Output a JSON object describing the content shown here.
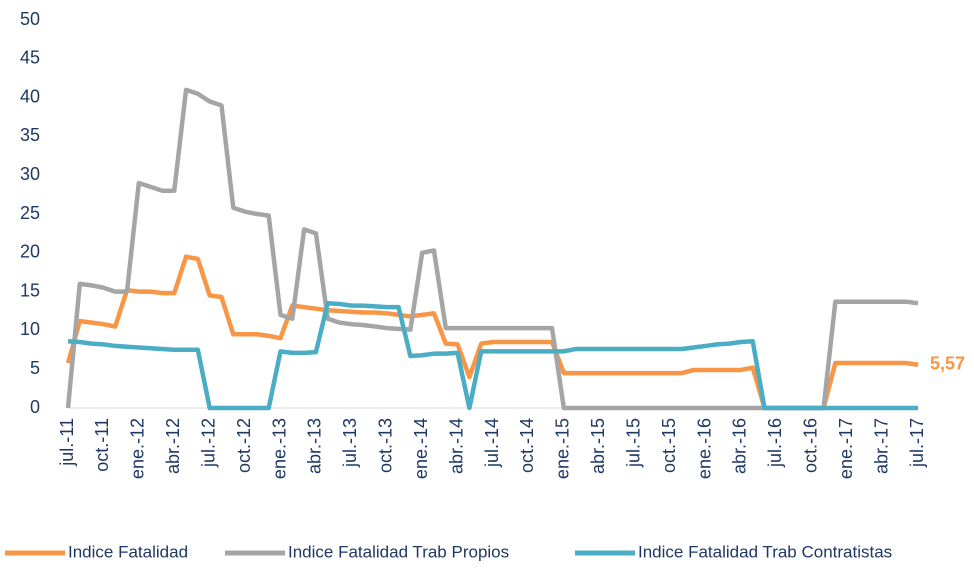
{
  "chart_data": {
    "type": "line",
    "categories": [
      "jul.-11",
      null,
      null,
      "oct.-11",
      null,
      null,
      "ene.-12",
      null,
      null,
      "abr.-12",
      null,
      null,
      "jul.-12",
      null,
      null,
      "oct.-12",
      null,
      null,
      "ene.-13",
      null,
      null,
      "abr.-13",
      null,
      null,
      "jul.-13",
      null,
      null,
      "oct.-13",
      null,
      null,
      "ene.-14",
      null,
      null,
      "abr.-14",
      null,
      null,
      "jul.-14",
      null,
      null,
      "oct.-14",
      null,
      null,
      "ene.-15",
      null,
      null,
      "abr.-15",
      null,
      null,
      "jul.-15",
      null,
      null,
      "oct.-15",
      null,
      null,
      "ene.-16",
      null,
      null,
      "abr.-16",
      null,
      null,
      "jul.-16",
      null,
      null,
      "oct.-16",
      null,
      null,
      "ene.-17",
      null,
      null,
      "abr.-17",
      null,
      null,
      "jul.-17"
    ],
    "series": [
      {
        "name": "Indice Fatalidad",
        "color": "#f79646",
        "values": [
          5.8,
          11.2,
          11,
          10.8,
          10.5,
          15.2,
          15,
          15,
          14.8,
          14.8,
          19.5,
          19.2,
          14.5,
          14.3,
          9.5,
          9.5,
          9.5,
          9.3,
          9,
          13.2,
          13,
          12.8,
          12.6,
          12.5,
          12.4,
          12.3,
          12.3,
          12.2,
          12,
          11.8,
          12,
          12.2,
          8.3,
          8.2,
          4,
          8.3,
          8.5,
          8.5,
          8.5,
          8.5,
          8.5,
          8.5,
          4.5,
          4.5,
          4.5,
          4.5,
          4.5,
          4.5,
          4.5,
          4.5,
          4.5,
          4.5,
          4.5,
          4.9,
          4.9,
          4.9,
          4.9,
          4.9,
          5.2,
          0,
          0,
          0,
          0,
          0,
          0,
          5.8,
          5.8,
          5.8,
          5.8,
          5.8,
          5.8,
          5.8,
          5.57
        ],
        "value_labels": [
          null,
          null,
          null,
          null,
          null,
          null,
          null,
          null,
          null,
          null,
          null,
          null,
          null,
          null,
          null,
          null,
          null,
          null,
          null,
          null,
          null,
          null,
          null,
          null,
          null,
          null,
          null,
          null,
          null,
          null,
          null,
          null,
          null,
          null,
          null,
          null,
          null,
          null,
          null,
          null,
          null,
          null,
          null,
          null,
          null,
          null,
          null,
          null,
          null,
          null,
          null,
          null,
          null,
          null,
          null,
          null,
          null,
          null,
          null,
          null,
          null,
          null,
          null,
          null,
          null,
          null,
          null,
          null,
          null,
          null,
          null,
          null,
          "5,57"
        ]
      },
      {
        "name": "Indice Fatalidad Trab Propios",
        "color": "#a5a5a5",
        "values": [
          0,
          16,
          15.8,
          15.5,
          15,
          15,
          29,
          28.5,
          28,
          28,
          41,
          40.5,
          39.5,
          39,
          25.8,
          25.3,
          25,
          24.8,
          12,
          11.5,
          23,
          22.5,
          11.5,
          11,
          10.8,
          10.7,
          10.5,
          10.3,
          10.2,
          10.1,
          20,
          20.3,
          10.3,
          10.3,
          10.3,
          10.3,
          10.3,
          10.3,
          10.3,
          10.3,
          10.3,
          10.3,
          0,
          0,
          0,
          0,
          0,
          0,
          0,
          0,
          0,
          0,
          0,
          0,
          0,
          0,
          0,
          0,
          0,
          0,
          0,
          0,
          0,
          0,
          0,
          13.7,
          13.7,
          13.7,
          13.7,
          13.7,
          13.7,
          13.7,
          13.5
        ]
      },
      {
        "name": "Indice Fatalidad Trab Contratistas",
        "color": "#4bacc6",
        "values": [
          8.6,
          8.5,
          8.3,
          8.2,
          8,
          7.9,
          7.8,
          7.7,
          7.6,
          7.5,
          7.5,
          7.5,
          0,
          0,
          0,
          0,
          0,
          0,
          7.3,
          7.1,
          7.1,
          7.2,
          13.5,
          13.4,
          13.2,
          13.2,
          13.1,
          13,
          13,
          6.7,
          6.8,
          7,
          7,
          7.1,
          0,
          7.3,
          7.3,
          7.3,
          7.3,
          7.3,
          7.3,
          7.3,
          7.3,
          7.6,
          7.6,
          7.6,
          7.6,
          7.6,
          7.6,
          7.6,
          7.6,
          7.6,
          7.6,
          7.8,
          8,
          8.2,
          8.3,
          8.5,
          8.6,
          0,
          0,
          0,
          0,
          0,
          0,
          0,
          0,
          0,
          0,
          0,
          0,
          0,
          0
        ]
      }
    ],
    "ylim": [
      0,
      50
    ],
    "yticks": [
      0,
      5,
      10,
      15,
      20,
      25,
      30,
      35,
      40,
      45,
      50
    ],
    "grid": false,
    "legend": "bottom"
  }
}
